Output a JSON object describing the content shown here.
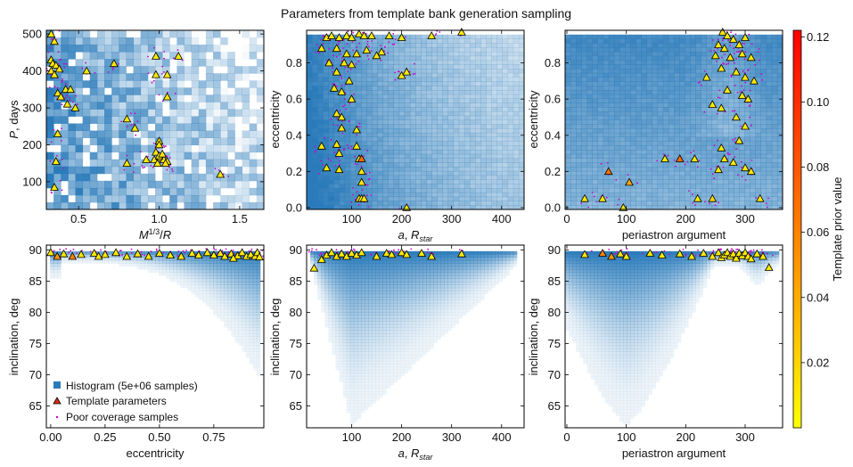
{
  "title": "Parameters from template bank generation sampling",
  "colorbar": {
    "label": "Template prior value",
    "range": [
      0.0,
      0.122
    ],
    "ticks": [
      0.02,
      0.04,
      0.06,
      0.08,
      0.1,
      0.12
    ],
    "tick_labels": [
      "0.02",
      "0.04",
      "0.06",
      "0.08",
      "0.10",
      "0.12"
    ],
    "colors": [
      "#ffff00",
      "#ff0000"
    ]
  },
  "legend": {
    "histogram": "Histogram (5e+06 samples)",
    "template": "Template parameters",
    "poor": "Poor coverage samples"
  },
  "colors": {
    "hist": "#2b7bba",
    "template_edge": "#000000",
    "poor": "#cc00cc"
  },
  "chart_data": [
    {
      "type": "scatter",
      "id": "p0",
      "xlabel": "M^{1/3}/R",
      "ylabel": "P, days",
      "xlim": [
        0.3,
        1.65
      ],
      "ylim": [
        25,
        510
      ],
      "xticks": [
        0.5,
        1.0,
        1.5
      ],
      "xtick_labels": [
        "0.5",
        "1.0",
        "1.5"
      ],
      "yticks": [
        100,
        200,
        300,
        400,
        500
      ],
      "ytick_labels": [
        "100",
        "200",
        "300",
        "400",
        "500"
      ],
      "template_points": [
        [
          0.33,
          500
        ],
        [
          0.35,
          480
        ],
        [
          0.33,
          430
        ],
        [
          0.34,
          420
        ],
        [
          0.36,
          415
        ],
        [
          0.38,
          405
        ],
        [
          0.33,
          400
        ],
        [
          0.35,
          390
        ],
        [
          0.42,
          350
        ],
        [
          0.45,
          350
        ],
        [
          0.37,
          340
        ],
        [
          0.39,
          330
        ],
        [
          0.43,
          310
        ],
        [
          0.48,
          300
        ],
        [
          0.37,
          230
        ],
        [
          0.36,
          155
        ],
        [
          0.35,
          85
        ],
        [
          0.55,
          400
        ],
        [
          0.72,
          420
        ],
        [
          0.8,
          270
        ],
        [
          0.85,
          245
        ],
        [
          0.98,
          440
        ],
        [
          0.98,
          390
        ],
        [
          1.05,
          390
        ],
        [
          1.12,
          440
        ],
        [
          1.05,
          330
        ],
        [
          0.8,
          150
        ],
        [
          1.0,
          210
        ],
        [
          1.0,
          200
        ],
        [
          0.98,
          180
        ],
        [
          0.97,
          160
        ],
        [
          0.99,
          150
        ],
        [
          1.01,
          165
        ],
        [
          1.03,
          160
        ],
        [
          1.05,
          155
        ],
        [
          1.0,
          170
        ],
        [
          1.02,
          175
        ],
        [
          1.04,
          150
        ],
        [
          1.38,
          120
        ],
        [
          0.92,
          160
        ]
      ],
      "template_values": [
        0.01,
        0.01,
        0.01,
        0.01,
        0.01,
        0.01,
        0.01,
        0.01,
        0.01,
        0.01,
        0.01,
        0.01,
        0.01,
        0.01,
        0.01,
        0.01,
        0.01,
        0.01,
        0.01,
        0.01,
        0.01,
        0.01,
        0.01,
        0.01,
        0.01,
        0.01,
        0.01,
        0.01,
        0.01,
        0.01,
        0.01,
        0.01,
        0.01,
        0.01,
        0.01,
        0.01,
        0.01,
        0.01,
        0.01,
        0.01
      ]
    },
    {
      "type": "scatter",
      "id": "p1",
      "xlabel": "a, R_star",
      "ylabel": "eccentricity",
      "xlim": [
        10,
        445
      ],
      "ylim": [
        -0.01,
        0.98
      ],
      "xticks": [
        100,
        200,
        300,
        400
      ],
      "xtick_labels": [
        "100",
        "200",
        "300",
        "400"
      ],
      "yticks": [
        0.0,
        0.2,
        0.4,
        0.6,
        0.8
      ],
      "ytick_labels": [
        "0.0",
        "0.2",
        "0.4",
        "0.6",
        "0.8"
      ],
      "template_points": [
        [
          50,
          0.94
        ],
        [
          60,
          0.95
        ],
        [
          75,
          0.94
        ],
        [
          90,
          0.95
        ],
        [
          100,
          0.94
        ],
        [
          115,
          0.96
        ],
        [
          125,
          0.95
        ],
        [
          140,
          0.95
        ],
        [
          175,
          0.95
        ],
        [
          200,
          0.94
        ],
        [
          260,
          0.95
        ],
        [
          320,
          0.97
        ],
        [
          40,
          0.88
        ],
        [
          70,
          0.88
        ],
        [
          90,
          0.85
        ],
        [
          110,
          0.85
        ],
        [
          130,
          0.87
        ],
        [
          160,
          0.86
        ],
        [
          55,
          0.8
        ],
        [
          85,
          0.8
        ],
        [
          100,
          0.79
        ],
        [
          150,
          0.84
        ],
        [
          200,
          0.73
        ],
        [
          210,
          0.75
        ],
        [
          70,
          0.75
        ],
        [
          95,
          0.7
        ],
        [
          65,
          0.66
        ],
        [
          80,
          0.64
        ],
        [
          100,
          0.6
        ],
        [
          70,
          0.52
        ],
        [
          80,
          0.5
        ],
        [
          80,
          0.44
        ],
        [
          110,
          0.43
        ],
        [
          70,
          0.35
        ],
        [
          75,
          0.3
        ],
        [
          110,
          0.34
        ],
        [
          40,
          0.34
        ],
        [
          50,
          0.22
        ],
        [
          75,
          0.21
        ],
        [
          115,
          0.27
        ],
        [
          120,
          0.27
        ],
        [
          120,
          0.2
        ],
        [
          120,
          0.14
        ],
        [
          115,
          0.05
        ],
        [
          120,
          0.05
        ],
        [
          125,
          0.05
        ],
        [
          210,
          0.0
        ]
      ],
      "template_values": [
        0.01,
        0.01,
        0.01,
        0.01,
        0.01,
        0.01,
        0.01,
        0.01,
        0.01,
        0.01,
        0.01,
        0.01,
        0.01,
        0.01,
        0.01,
        0.01,
        0.01,
        0.01,
        0.01,
        0.01,
        0.01,
        0.01,
        0.01,
        0.01,
        0.01,
        0.01,
        0.01,
        0.01,
        0.01,
        0.01,
        0.01,
        0.01,
        0.01,
        0.01,
        0.01,
        0.01,
        0.01,
        0.01,
        0.01,
        0.01,
        0.07,
        0.01,
        0.01,
        0.01,
        0.01,
        0.01,
        0.01
      ]
    },
    {
      "type": "scatter",
      "id": "p2",
      "xlabel": "periastron argument",
      "ylabel": "eccentricity",
      "xlim": [
        -3,
        363
      ],
      "ylim": [
        -0.01,
        0.98
      ],
      "xticks": [
        0,
        100,
        200,
        300
      ],
      "xtick_labels": [
        "0",
        "100",
        "200",
        "300"
      ],
      "yticks": [
        0.0,
        0.2,
        0.4,
        0.6,
        0.8
      ],
      "ytick_labels": [
        "0.0",
        "0.2",
        "0.4",
        "0.6",
        "0.8"
      ],
      "template_points": [
        [
          262,
          0.97
        ],
        [
          270,
          0.95
        ],
        [
          280,
          0.93
        ],
        [
          255,
          0.9
        ],
        [
          265,
          0.88
        ],
        [
          290,
          0.9
        ],
        [
          300,
          0.94
        ],
        [
          250,
          0.84
        ],
        [
          275,
          0.83
        ],
        [
          295,
          0.85
        ],
        [
          310,
          0.83
        ],
        [
          260,
          0.77
        ],
        [
          285,
          0.75
        ],
        [
          300,
          0.72
        ],
        [
          315,
          0.7
        ],
        [
          235,
          0.72
        ],
        [
          270,
          0.65
        ],
        [
          295,
          0.62
        ],
        [
          305,
          0.6
        ],
        [
          245,
          0.57
        ],
        [
          260,
          0.55
        ],
        [
          285,
          0.5
        ],
        [
          300,
          0.45
        ],
        [
          290,
          0.37
        ],
        [
          260,
          0.33
        ],
        [
          265,
          0.27
        ],
        [
          280,
          0.25
        ],
        [
          300,
          0.22
        ],
        [
          255,
          0.21
        ],
        [
          310,
          0.2
        ],
        [
          325,
          0.05
        ],
        [
          165,
          0.27
        ],
        [
          190,
          0.27
        ],
        [
          215,
          0.27
        ],
        [
          70,
          0.2
        ],
        [
          105,
          0.14
        ],
        [
          30,
          0.05
        ],
        [
          60,
          0.05
        ],
        [
          95,
          0.0
        ],
        [
          220,
          0.05
        ],
        [
          245,
          0.05
        ]
      ],
      "template_values": [
        0.01,
        0.01,
        0.01,
        0.01,
        0.01,
        0.01,
        0.01,
        0.01,
        0.01,
        0.01,
        0.01,
        0.01,
        0.01,
        0.01,
        0.01,
        0.01,
        0.01,
        0.01,
        0.01,
        0.01,
        0.01,
        0.01,
        0.01,
        0.01,
        0.01,
        0.01,
        0.01,
        0.01,
        0.01,
        0.01,
        0.01,
        0.01,
        0.07,
        0.01,
        0.07,
        0.04,
        0.01,
        0.01,
        0.01,
        0.01,
        0.02
      ]
    },
    {
      "type": "scatter",
      "id": "p3",
      "xlabel": "eccentricity",
      "ylabel": "inclination, deg",
      "xlim": [
        -0.02,
        0.98
      ],
      "ylim": [
        61.5,
        90.8
      ],
      "xticks": [
        0.0,
        0.25,
        0.5,
        0.75
      ],
      "xtick_labels": [
        "0.00",
        "0.25",
        "0.50",
        "0.75"
      ],
      "yticks": [
        65,
        70,
        75,
        80,
        85,
        90
      ],
      "ytick_labels": [
        "65",
        "70",
        "75",
        "80",
        "85",
        "90"
      ],
      "template_points": [
        [
          0.0,
          89.6
        ],
        [
          0.03,
          89.0
        ],
        [
          0.06,
          89.4
        ],
        [
          0.1,
          89.0
        ],
        [
          0.14,
          89.3
        ],
        [
          0.2,
          89.5
        ],
        [
          0.22,
          89.0
        ],
        [
          0.25,
          89.3
        ],
        [
          0.3,
          89.6
        ],
        [
          0.35,
          89.0
        ],
        [
          0.4,
          89.4
        ],
        [
          0.45,
          89.0
        ],
        [
          0.5,
          89.5
        ],
        [
          0.55,
          89.2
        ],
        [
          0.6,
          89.0
        ],
        [
          0.65,
          89.5
        ],
        [
          0.68,
          89.2
        ],
        [
          0.72,
          89.6
        ],
        [
          0.75,
          89.2
        ],
        [
          0.78,
          89.5
        ],
        [
          0.8,
          89.0
        ],
        [
          0.83,
          89.4
        ],
        [
          0.86,
          89.1
        ],
        [
          0.88,
          89.6
        ],
        [
          0.9,
          89.0
        ],
        [
          0.92,
          89.3
        ],
        [
          0.94,
          89.0
        ],
        [
          0.95,
          89.6
        ],
        [
          0.96,
          88.9
        ],
        [
          0.84,
          88.7
        ]
      ],
      "template_values": [
        0.01,
        0.05,
        0.01,
        0.06,
        0.01,
        0.01,
        0.01,
        0.01,
        0.01,
        0.01,
        0.01,
        0.01,
        0.01,
        0.01,
        0.01,
        0.01,
        0.01,
        0.01,
        0.01,
        0.01,
        0.01,
        0.01,
        0.01,
        0.01,
        0.01,
        0.01,
        0.01,
        0.01,
        0.01,
        0.01
      ]
    },
    {
      "type": "scatter",
      "id": "p4",
      "xlabel": "a, R_star",
      "ylabel": "inclination, deg",
      "xlim": [
        10,
        445
      ],
      "ylim": [
        61.5,
        90.8
      ],
      "xticks": [
        100,
        200,
        300,
        400
      ],
      "xtick_labels": [
        "100",
        "200",
        "300",
        "400"
      ],
      "yticks": [
        65,
        70,
        75,
        80,
        85,
        90
      ],
      "ytick_labels": [
        "65",
        "70",
        "75",
        "80",
        "85",
        "90"
      ],
      "template_points": [
        [
          25,
          87.1
        ],
        [
          40,
          88.5
        ],
        [
          50,
          89.2
        ],
        [
          60,
          89.6
        ],
        [
          70,
          89.0
        ],
        [
          80,
          89.4
        ],
        [
          90,
          89.0
        ],
        [
          100,
          89.5
        ],
        [
          110,
          89.2
        ],
        [
          120,
          89.6
        ],
        [
          150,
          89.0
        ],
        [
          170,
          89.5
        ],
        [
          180,
          89.3
        ],
        [
          200,
          89.6
        ],
        [
          210,
          89.3
        ],
        [
          240,
          89.5
        ],
        [
          260,
          89.0
        ],
        [
          320,
          89.4
        ]
      ],
      "template_values": [
        0.01,
        0.01,
        0.01,
        0.01,
        0.01,
        0.01,
        0.01,
        0.01,
        0.01,
        0.01,
        0.01,
        0.01,
        0.01,
        0.01,
        0.01,
        0.01,
        0.01,
        0.01
      ]
    },
    {
      "type": "scatter",
      "id": "p5",
      "xlabel": "periastron argument",
      "ylabel": "inclination, deg",
      "xlim": [
        -3,
        363
      ],
      "ylim": [
        61.5,
        90.8
      ],
      "xticks": [
        0,
        100,
        200,
        300
      ],
      "xtick_labels": [
        "0",
        "100",
        "200",
        "300"
      ],
      "yticks": [
        65,
        70,
        75,
        80,
        85,
        90
      ],
      "ytick_labels": [
        "65",
        "70",
        "75",
        "80",
        "85",
        "90"
      ],
      "template_points": [
        [
          30,
          89.3
        ],
        [
          60,
          89.5
        ],
        [
          75,
          89.0
        ],
        [
          90,
          89.4
        ],
        [
          100,
          89.0
        ],
        [
          140,
          89.5
        ],
        [
          160,
          89.2
        ],
        [
          190,
          89.4
        ],
        [
          210,
          89.0
        ],
        [
          230,
          89.5
        ],
        [
          245,
          89.0
        ],
        [
          255,
          89.6
        ],
        [
          260,
          88.8
        ],
        [
          265,
          89.2
        ],
        [
          270,
          89.6
        ],
        [
          275,
          89.0
        ],
        [
          280,
          89.4
        ],
        [
          285,
          88.7
        ],
        [
          290,
          89.5
        ],
        [
          295,
          89.1
        ],
        [
          300,
          89.6
        ],
        [
          305,
          89.0
        ],
        [
          310,
          88.6
        ],
        [
          320,
          89.4
        ],
        [
          330,
          89.0
        ],
        [
          340,
          87.2
        ]
      ],
      "template_values": [
        0.01,
        0.06,
        0.05,
        0.01,
        0.01,
        0.01,
        0.01,
        0.01,
        0.01,
        0.01,
        0.01,
        0.01,
        0.01,
        0.01,
        0.01,
        0.01,
        0.01,
        0.01,
        0.01,
        0.01,
        0.01,
        0.01,
        0.01,
        0.01,
        0.01,
        0.01
      ]
    }
  ]
}
